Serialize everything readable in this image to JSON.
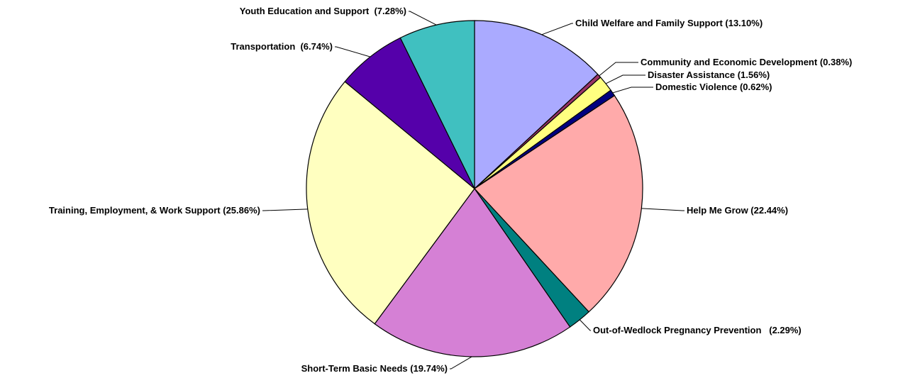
{
  "chart_data": {
    "type": "pie",
    "title": "",
    "slices": [
      {
        "label": "Child Welfare and Family Support (13.10%)",
        "value": 13.1,
        "color": "#AAAAFF"
      },
      {
        "label": "Community and Economic Development (0.38%)",
        "value": 0.38,
        "color": "#993366"
      },
      {
        "label": "Disaster Assistance (1.56%)",
        "value": 1.56,
        "color": "#FFFF80"
      },
      {
        "label": "Domestic Violence (0.62%)",
        "value": 0.62,
        "color": "#000080"
      },
      {
        "label": "Help Me Grow (22.44%)",
        "value": 22.44,
        "color": "#FFAAAA"
      },
      {
        "label": "Out-of-Wedlock Pregnancy Prevention   (2.29%)",
        "value": 2.29,
        "color": "#008080"
      },
      {
        "label": "Short-Term Basic Needs (19.74%)",
        "value": 19.74,
        "color": "#D580D5"
      },
      {
        "label": "Training, Employment, & Work Support (25.86%)",
        "value": 25.86,
        "color": "#FFFFC0"
      },
      {
        "label": "Transportation  (6.74%)",
        "value": 6.74,
        "color": "#5500AA"
      },
      {
        "label": "Youth Education and Support  (7.28%)",
        "value": 7.28,
        "color": "#40C0C0"
      }
    ]
  }
}
